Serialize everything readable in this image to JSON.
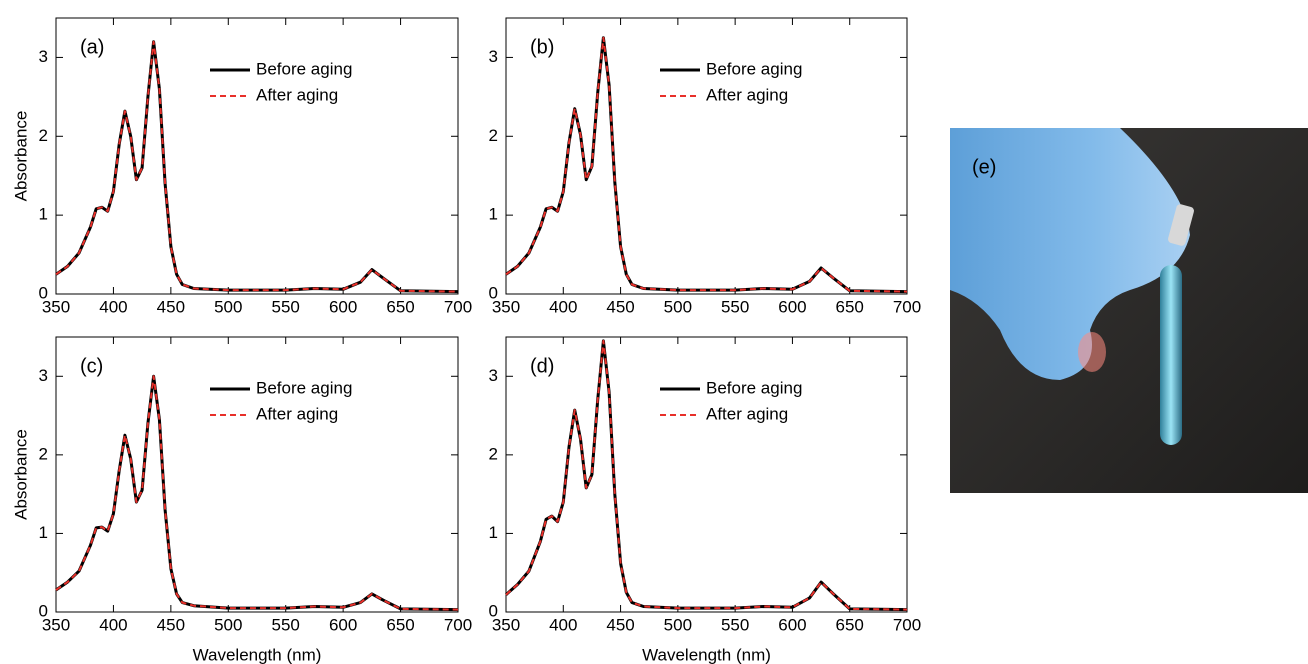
{
  "chart_data": [
    {
      "type": "line",
      "panel": "(a)",
      "ylabel": "Absorbance",
      "legend": "upper right",
      "xlim": [
        350,
        700
      ],
      "ylim": [
        0,
        3.5
      ],
      "xticks": [
        350,
        400,
        450,
        500,
        550,
        600,
        650,
        700
      ],
      "yticks": [
        0,
        1,
        2,
        3
      ],
      "x": [
        350,
        360,
        370,
        380,
        385,
        390,
        395,
        400,
        405,
        410,
        415,
        420,
        425,
        430,
        435,
        440,
        445,
        450,
        455,
        460,
        470,
        500,
        550,
        575,
        600,
        615,
        625,
        635,
        650,
        700
      ],
      "series": [
        {
          "name": "Before aging",
          "color": "#000000",
          "linestyle": "solid",
          "values": [
            0.25,
            0.35,
            0.52,
            0.85,
            1.08,
            1.1,
            1.05,
            1.3,
            1.9,
            2.32,
            2.0,
            1.45,
            1.6,
            2.5,
            3.2,
            2.6,
            1.4,
            0.6,
            0.25,
            0.12,
            0.07,
            0.05,
            0.05,
            0.07,
            0.06,
            0.15,
            0.31,
            0.2,
            0.04,
            0.03
          ]
        },
        {
          "name": "After aging",
          "color": "#e8302a",
          "linestyle": "dashed",
          "values": [
            0.25,
            0.35,
            0.52,
            0.85,
            1.08,
            1.1,
            1.05,
            1.3,
            1.9,
            2.32,
            2.0,
            1.45,
            1.6,
            2.5,
            3.2,
            2.6,
            1.4,
            0.6,
            0.25,
            0.12,
            0.07,
            0.05,
            0.05,
            0.07,
            0.06,
            0.15,
            0.31,
            0.2,
            0.04,
            0.03
          ]
        }
      ]
    },
    {
      "type": "line",
      "panel": "(b)",
      "legend": "upper right",
      "xlim": [
        350,
        700
      ],
      "ylim": [
        0,
        3.5
      ],
      "xticks": [
        350,
        400,
        450,
        500,
        550,
        600,
        650,
        700
      ],
      "yticks": [
        0,
        1,
        2,
        3
      ],
      "x": [
        350,
        360,
        370,
        380,
        385,
        390,
        395,
        400,
        405,
        410,
        415,
        420,
        425,
        430,
        435,
        440,
        445,
        450,
        455,
        460,
        470,
        500,
        550,
        575,
        600,
        615,
        625,
        635,
        650,
        700
      ],
      "series": [
        {
          "name": "Before aging",
          "color": "#000000",
          "linestyle": "solid",
          "values": [
            0.25,
            0.35,
            0.52,
            0.85,
            1.08,
            1.1,
            1.05,
            1.3,
            1.92,
            2.35,
            2.02,
            1.45,
            1.62,
            2.55,
            3.25,
            2.65,
            1.42,
            0.6,
            0.25,
            0.12,
            0.07,
            0.05,
            0.05,
            0.07,
            0.06,
            0.16,
            0.33,
            0.21,
            0.04,
            0.03
          ]
        },
        {
          "name": "After aging",
          "color": "#e8302a",
          "linestyle": "dashed",
          "values": [
            0.25,
            0.35,
            0.52,
            0.85,
            1.08,
            1.1,
            1.05,
            1.3,
            1.92,
            2.35,
            2.02,
            1.45,
            1.62,
            2.55,
            3.25,
            2.65,
            1.42,
            0.6,
            0.25,
            0.12,
            0.07,
            0.05,
            0.05,
            0.07,
            0.06,
            0.16,
            0.33,
            0.21,
            0.04,
            0.03
          ]
        }
      ]
    },
    {
      "type": "line",
      "panel": "(c)",
      "xlabel": "Wavelength (nm)",
      "ylabel": "Absorbance",
      "legend": "upper right",
      "xlim": [
        350,
        700
      ],
      "ylim": [
        0,
        3.5
      ],
      "xticks": [
        350,
        400,
        450,
        500,
        550,
        600,
        650,
        700
      ],
      "yticks": [
        0,
        1,
        2,
        3
      ],
      "x": [
        350,
        360,
        370,
        380,
        385,
        390,
        395,
        400,
        405,
        410,
        415,
        420,
        425,
        430,
        435,
        440,
        445,
        450,
        455,
        460,
        470,
        500,
        550,
        575,
        600,
        615,
        625,
        635,
        650,
        700
      ],
      "series": [
        {
          "name": "Before aging",
          "color": "#000000",
          "linestyle": "solid",
          "values": [
            0.28,
            0.38,
            0.52,
            0.85,
            1.07,
            1.08,
            1.03,
            1.25,
            1.8,
            2.25,
            1.95,
            1.4,
            1.55,
            2.4,
            3.0,
            2.45,
            1.3,
            0.55,
            0.23,
            0.12,
            0.08,
            0.05,
            0.05,
            0.07,
            0.06,
            0.12,
            0.23,
            0.15,
            0.04,
            0.03
          ]
        },
        {
          "name": "After aging",
          "color": "#e8302a",
          "linestyle": "dashed",
          "values": [
            0.28,
            0.38,
            0.52,
            0.85,
            1.07,
            1.08,
            1.03,
            1.25,
            1.8,
            2.25,
            1.95,
            1.4,
            1.55,
            2.4,
            3.0,
            2.45,
            1.3,
            0.55,
            0.23,
            0.12,
            0.08,
            0.05,
            0.05,
            0.07,
            0.06,
            0.12,
            0.23,
            0.15,
            0.04,
            0.03
          ]
        }
      ]
    },
    {
      "type": "line",
      "panel": "(d)",
      "xlabel": "Wavelength (nm)",
      "legend": "upper right",
      "xlim": [
        350,
        700
      ],
      "ylim": [
        0,
        3.5
      ],
      "xticks": [
        350,
        400,
        450,
        500,
        550,
        600,
        650,
        700
      ],
      "yticks": [
        0,
        1,
        2,
        3
      ],
      "x": [
        350,
        360,
        370,
        380,
        385,
        390,
        395,
        400,
        405,
        410,
        415,
        420,
        425,
        430,
        435,
        440,
        445,
        450,
        455,
        460,
        470,
        500,
        550,
        575,
        600,
        615,
        625,
        635,
        650,
        700
      ],
      "series": [
        {
          "name": "Before aging",
          "color": "#000000",
          "linestyle": "solid",
          "values": [
            0.22,
            0.35,
            0.52,
            0.9,
            1.18,
            1.22,
            1.15,
            1.4,
            2.1,
            2.57,
            2.2,
            1.58,
            1.75,
            2.7,
            3.45,
            2.8,
            1.5,
            0.62,
            0.25,
            0.12,
            0.07,
            0.05,
            0.05,
            0.07,
            0.06,
            0.18,
            0.38,
            0.24,
            0.04,
            0.03
          ]
        },
        {
          "name": "After aging",
          "color": "#e8302a",
          "linestyle": "dashed",
          "values": [
            0.22,
            0.35,
            0.52,
            0.9,
            1.18,
            1.22,
            1.15,
            1.4,
            2.1,
            2.57,
            2.2,
            1.58,
            1.75,
            2.7,
            3.45,
            2.8,
            1.5,
            0.62,
            0.25,
            0.12,
            0.07,
            0.05,
            0.05,
            0.07,
            0.06,
            0.18,
            0.38,
            0.24,
            0.04,
            0.03
          ]
        }
      ]
    }
  ],
  "photo": {
    "label": "(e)"
  }
}
